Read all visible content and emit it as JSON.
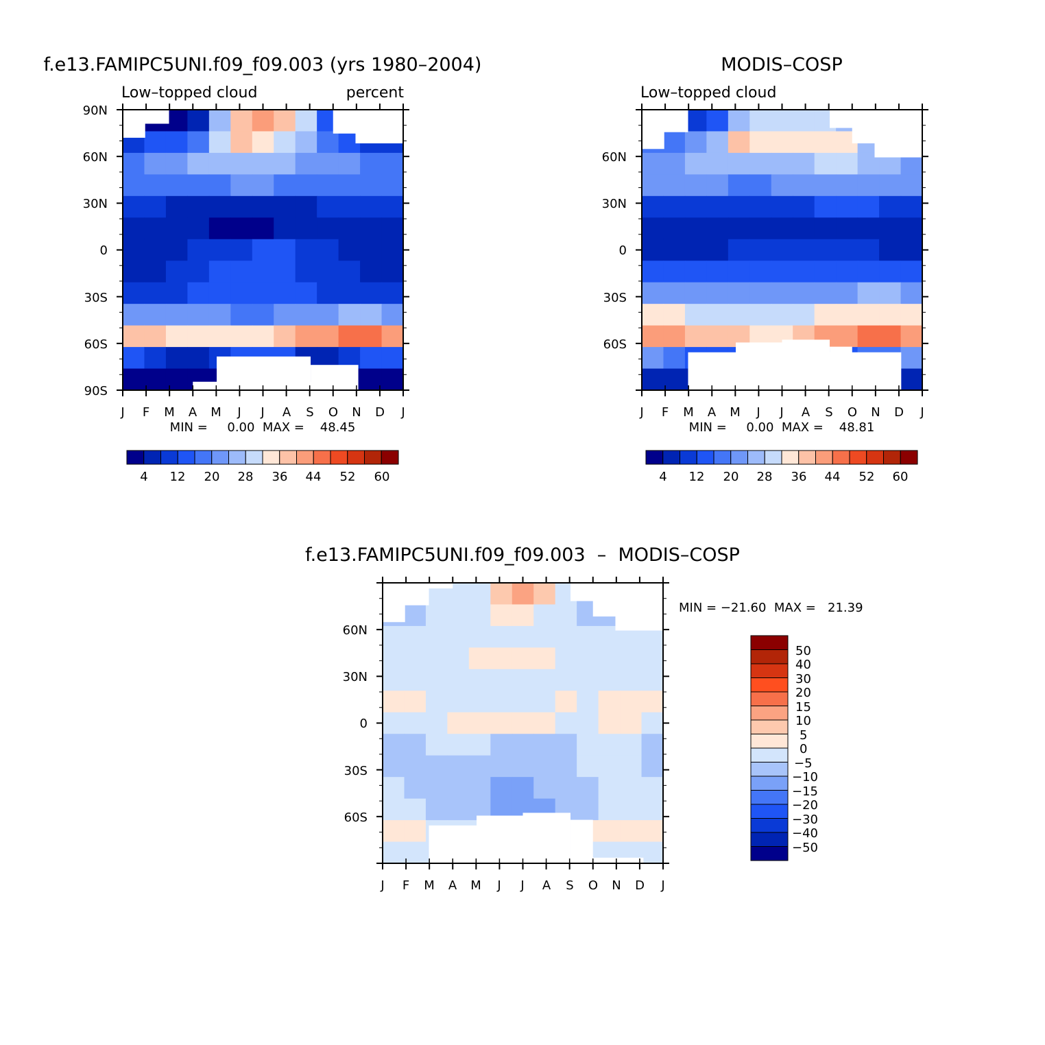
{
  "colors": {
    "seq": [
      "#00008b",
      "#0024b3",
      "#0a3ad6",
      "#1f55f5",
      "#4476f7",
      "#6f97f8",
      "#9dbbfa",
      "#c6dbfb",
      "#ffe7d7",
      "#fdc2a7",
      "#fb9d7a",
      "#f7704a",
      "#ee4a22",
      "#d63512",
      "#b22508",
      "#8b0000"
    ],
    "diff": [
      "#00008b",
      "#0024b3",
      "#0a3ad6",
      "#1f55f5",
      "#4476f7",
      "#7aa1f8",
      "#a8c4fa",
      "#d3e5fc",
      "#ffe7d7",
      "#fdc9ae",
      "#fba382",
      "#f7704a",
      "#ff4f1f",
      "#d63512",
      "#b22508",
      "#8b0000"
    ]
  },
  "panels": [
    {
      "title": "f.e13.FAMIPC5UNI.f09_f09.003 (yrs 1980–2004)",
      "left_label": "Low–topped cloud",
      "right_label": "percent",
      "ytick_labels": [
        "90N",
        "60N",
        "30N",
        "0",
        "30S",
        "60S",
        "90S"
      ],
      "xtick_labels": [
        "J",
        "F",
        "M",
        "A",
        "M",
        "J",
        "J",
        "A",
        "S",
        "O",
        "N",
        "D",
        "J"
      ],
      "stats": "MIN =     0.00  MAX =    48.45"
    },
    {
      "title": "MODIS–COSP",
      "left_label": "Low–topped cloud",
      "right_label": "",
      "ytick_labels": [
        "60N",
        "30N",
        "0",
        "30S",
        "60S"
      ],
      "xtick_labels": [
        "J",
        "F",
        "M",
        "A",
        "M",
        "J",
        "J",
        "A",
        "S",
        "O",
        "N",
        "D",
        "J"
      ],
      "stats": "MIN =     0.00  MAX =    48.81"
    },
    {
      "title": "f.e13.FAMIPC5UNI.f09_f09.003  –  MODIS–COSP",
      "ytick_labels": [
        "60N",
        "30N",
        "0",
        "30S",
        "60S"
      ],
      "xtick_labels": [
        "J",
        "F",
        "M",
        "A",
        "M",
        "J",
        "J",
        "A",
        "S",
        "O",
        "N",
        "D",
        "J"
      ],
      "stats": "MIN = −21.60  MAX =   21.39"
    }
  ],
  "colorbar_seq_labels": [
    "4",
    "12",
    "20",
    "28",
    "36",
    "44",
    "52",
    "60"
  ],
  "colorbar_diff_labels": [
    "50",
    "40",
    "30",
    "20",
    "15",
    "10",
    "5",
    "0",
    "−5",
    "−10",
    "−15",
    "−20",
    "−30",
    "−40",
    "−50"
  ],
  "chart_data": [
    {
      "type": "heatmap",
      "title": "f.e13.FAMIPC5UNI.f09_f09.003 (yrs 1980–2004)",
      "subtitle_left": "Low–topped cloud",
      "subtitle_right": "percent",
      "x": [
        "J",
        "F",
        "M",
        "A",
        "M",
        "J",
        "J",
        "A",
        "S",
        "O",
        "N",
        "D",
        "J"
      ],
      "y": [
        90,
        75,
        60,
        45,
        30,
        15,
        0,
        -15,
        -30,
        -45,
        -60,
        -75,
        -90
      ],
      "ylim": [
        -90,
        90
      ],
      "min": 0.0,
      "max": 48.45,
      "levels": [
        4,
        8,
        12,
        16,
        20,
        24,
        28,
        32,
        36,
        40,
        44,
        48,
        52,
        56,
        60
      ],
      "values": [
        [
          2,
          2,
          2,
          6,
          24,
          36,
          40,
          36,
          28,
          14,
          10,
          10,
          2
        ],
        [
          10,
          12,
          14,
          18,
          30,
          36,
          34,
          30,
          24,
          18,
          12,
          10,
          10
        ],
        [
          18,
          20,
          22,
          24,
          24,
          26,
          25,
          24,
          22,
          22,
          20,
          18,
          18
        ],
        [
          16,
          16,
          18,
          18,
          18,
          20,
          20,
          18,
          18,
          16,
          16,
          16,
          16
        ],
        [
          8,
          8,
          7,
          6,
          5,
          5,
          5,
          6,
          7,
          8,
          8,
          8,
          8
        ],
        [
          5,
          5,
          4,
          4,
          3,
          3,
          3,
          4,
          5,
          5,
          5,
          5,
          5
        ],
        [
          6,
          6,
          7,
          8,
          9,
          10,
          12,
          12,
          10,
          8,
          7,
          6,
          6
        ],
        [
          5,
          6,
          8,
          11,
          13,
          14,
          14,
          13,
          11,
          10,
          8,
          6,
          5
        ],
        [
          10,
          11,
          11,
          12,
          12,
          13,
          12,
          12,
          12,
          11,
          10,
          10,
          10
        ],
        [
          22,
          22,
          22,
          21,
          20,
          19,
          19,
          20,
          21,
          22,
          24,
          24,
          22
        ],
        [
          36,
          38,
          34,
          33,
          34,
          32,
          32,
          36,
          40,
          42,
          44,
          44,
          40
        ],
        [
          12,
          10,
          6,
          6,
          8,
          12,
          14,
          12,
          6,
          6,
          10,
          12,
          12
        ],
        [
          2,
          2,
          2,
          2,
          2,
          2,
          2,
          2,
          2,
          2,
          2,
          2,
          2
        ]
      ]
    },
    {
      "type": "heatmap",
      "title": "MODIS–COSP",
      "subtitle_left": "Low–topped cloud",
      "x": [
        "J",
        "F",
        "M",
        "A",
        "M",
        "J",
        "J",
        "A",
        "S",
        "O",
        "N",
        "D",
        "J"
      ],
      "y": [
        90,
        75,
        60,
        45,
        30,
        15,
        0,
        -15,
        -30,
        -45,
        -60,
        -75,
        -90
      ],
      "ylim": [
        -90,
        90
      ],
      "min": 0.0,
      "max": 48.81,
      "levels": [
        4,
        8,
        12,
        16,
        20,
        24,
        28,
        32,
        36,
        40,
        44,
        48,
        52,
        56,
        60
      ],
      "values": [
        [
          10,
          10,
          10,
          14,
          26,
          30,
          30,
          30,
          30,
          26,
          18,
          16,
          10
        ],
        [
          18,
          18,
          20,
          24,
          36,
          34,
          34,
          34,
          34,
          32,
          26,
          24,
          18
        ],
        [
          22,
          22,
          24,
          26,
          26,
          26,
          24,
          26,
          28,
          28,
          26,
          26,
          22
        ],
        [
          20,
          20,
          20,
          20,
          18,
          18,
          20,
          20,
          22,
          22,
          20,
          20,
          20
        ],
        [
          9,
          9,
          9,
          9,
          9,
          9,
          10,
          10,
          12,
          12,
          12,
          10,
          9
        ],
        [
          7,
          7,
          6,
          6,
          5,
          5,
          4,
          4,
          6,
          6,
          7,
          7,
          7
        ],
        [
          6,
          6,
          6,
          7,
          8,
          9,
          10,
          11,
          11,
          10,
          8,
          7,
          6
        ],
        [
          12,
          12,
          12,
          13,
          14,
          15,
          15,
          14,
          13,
          12,
          12,
          12,
          12
        ],
        [
          22,
          22,
          22,
          21,
          21,
          21,
          21,
          22,
          22,
          23,
          24,
          24,
          22
        ],
        [
          32,
          32,
          31,
          31,
          30,
          30,
          30,
          31,
          32,
          33,
          34,
          34,
          32
        ],
        [
          40,
          40,
          38,
          36,
          36,
          34,
          34,
          36,
          40,
          42,
          44,
          44,
          40
        ],
        [
          20,
          18,
          14,
          12,
          12,
          14,
          14,
          14,
          12,
          12,
          16,
          18,
          20
        ],
        [
          4,
          4,
          4,
          4,
          4,
          4,
          4,
          4,
          4,
          4,
          4,
          4,
          4
        ]
      ]
    },
    {
      "type": "heatmap",
      "title": "f.e13.FAMIPC5UNI.f09_f09.003  –  MODIS–COSP",
      "x": [
        "J",
        "F",
        "M",
        "A",
        "M",
        "J",
        "J",
        "A",
        "S",
        "O",
        "N",
        "D",
        "J"
      ],
      "y": [
        90,
        75,
        60,
        45,
        30,
        15,
        0,
        -15,
        -30,
        -45,
        -60,
        -75,
        -90
      ],
      "ylim": [
        -90,
        90
      ],
      "min": -21.6,
      "max": 21.39,
      "levels": [
        -50,
        -40,
        -30,
        -20,
        -15,
        -10,
        -5,
        0,
        5,
        10,
        15,
        20,
        30,
        40,
        50
      ],
      "values": [
        [
          -4,
          -4,
          -4,
          -4,
          -2,
          6,
          10,
          6,
          -2,
          -6,
          -4,
          -4,
          -4
        ],
        [
          -6,
          -6,
          -4,
          -4,
          -2,
          2,
          2,
          -2,
          -4,
          -6,
          -6,
          -6,
          -6
        ],
        [
          -4,
          -4,
          -2,
          -2,
          -2,
          -2,
          -2,
          -2,
          -2,
          -4,
          -4,
          -4,
          -4
        ],
        [
          -4,
          -4,
          -2,
          -2,
          1,
          2,
          2,
          1,
          -2,
          -4,
          -4,
          -4,
          -4
        ],
        [
          -4,
          -4,
          -2,
          -2,
          -2,
          -2,
          -4,
          -4,
          -4,
          -4,
          -4,
          -4,
          -4
        ],
        [
          1,
          1,
          -2,
          -2,
          -2,
          -2,
          -2,
          -2,
          1,
          -2,
          1,
          1,
          1
        ],
        [
          -2,
          -2,
          -2,
          2,
          2,
          1,
          2,
          2,
          -2,
          -2,
          1,
          1,
          -2
        ],
        [
          -6,
          -6,
          -4,
          -2,
          -4,
          -6,
          -6,
          -6,
          -6,
          -4,
          -2,
          -2,
          -6
        ],
        [
          -6,
          -6,
          -6,
          -6,
          -6,
          -6,
          -8,
          -8,
          -6,
          -4,
          -4,
          -4,
          -6
        ],
        [
          -4,
          -6,
          -8,
          -8,
          -10,
          -12,
          -12,
          -10,
          -8,
          -6,
          -4,
          -4,
          -4
        ],
        [
          -4,
          -4,
          -6,
          -8,
          -10,
          -12,
          -14,
          -12,
          -10,
          -6,
          -4,
          -4,
          -4
        ],
        [
          2,
          2,
          -2,
          -4,
          -4,
          -4,
          -4,
          -4,
          -2,
          2,
          2,
          2,
          2
        ],
        [
          -2,
          -2,
          -2,
          -2,
          -2,
          -2,
          -2,
          -2,
          -2,
          -2,
          -2,
          -2,
          -2
        ]
      ]
    }
  ]
}
